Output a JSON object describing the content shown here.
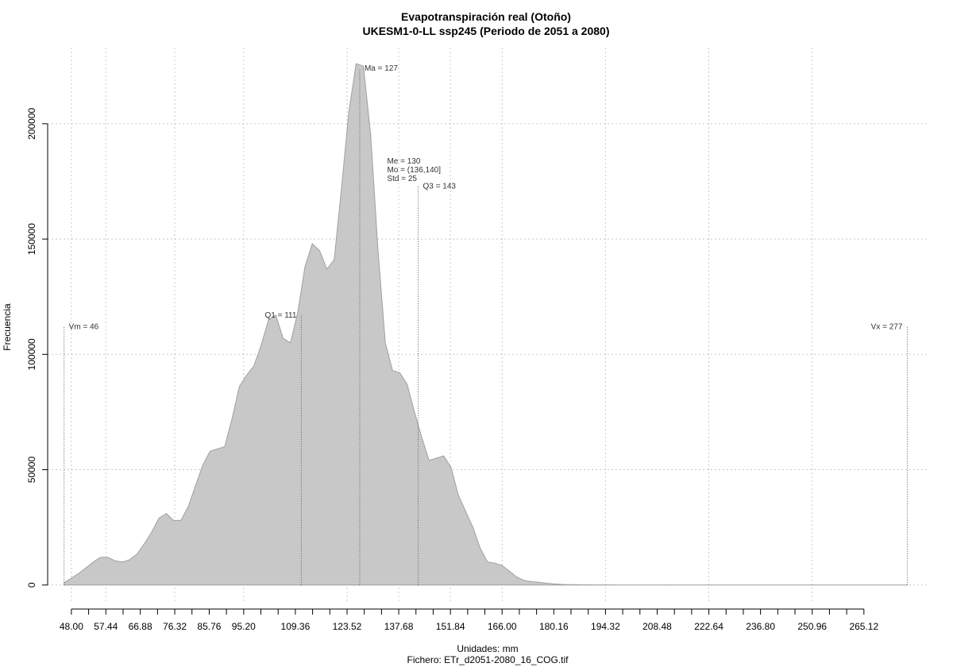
{
  "chart_data": {
    "type": "area",
    "title": "Evapotranspiración real (Otoño)",
    "subtitle": "UKESM1-0-LL ssp245 (Periodo de 2051 a 2080)",
    "xlabel": "Unidades: mm",
    "caption": "Fichero: ETr_d2051-2080_16_COG.tif",
    "ylabel": "Frecuencia",
    "xlim": [
      41.5,
      283
    ],
    "ylim": [
      -8000,
      233000
    ],
    "x_ticks": [
      48,
      57.44,
      66.88,
      76.32,
      85.76,
      95.2,
      109.36,
      123.52,
      137.68,
      151.84,
      166,
      180.16,
      194.32,
      208.48,
      222.64,
      236.8,
      250.96,
      265.12
    ],
    "x_tick_labels": [
      "48.00",
      "57.44",
      "66.88",
      "76.32",
      "85.76",
      "95.20",
      "109.36",
      "123.52",
      "137.68",
      "151.84",
      "166.00",
      "180.16",
      "194.32",
      "208.48",
      "222.64",
      "236.80",
      "250.96",
      "265.12"
    ],
    "x_minor_step": 4.72,
    "y_ticks": [
      0,
      50000,
      100000,
      150000,
      200000
    ],
    "y_tick_labels": [
      "0",
      "50000",
      "100000",
      "150000",
      "200000"
    ],
    "grid": true,
    "grid_x": [
      48,
      57.44,
      76.32,
      95.2,
      123.52,
      137.68,
      151.84,
      166,
      194.32,
      222.64,
      250.96
    ],
    "fill_color": "#c8c8c8",
    "series": [
      {
        "x": [
          46,
          48,
          50,
          52,
          54,
          56,
          58,
          60,
          62,
          64,
          66,
          68,
          70,
          72,
          74,
          76,
          78,
          80,
          82,
          84,
          86,
          88,
          90,
          92,
          94,
          96,
          98,
          100,
          102,
          104,
          106,
          108,
          110,
          112,
          114,
          116,
          118,
          120,
          122,
          124,
          126,
          128,
          130,
          132,
          134,
          136,
          138,
          140,
          142,
          144,
          146,
          148,
          150,
          152,
          154,
          156,
          158,
          160,
          162,
          164,
          166,
          168,
          170,
          172,
          174,
          176,
          178,
          180,
          182,
          184,
          186,
          188,
          190,
          192,
          194,
          196,
          198,
          200,
          202,
          205,
          210,
          220,
          230,
          240,
          250,
          260,
          270,
          277
        ],
        "y": [
          1000,
          3000,
          5000,
          7500,
          10000,
          12000,
          12000,
          10500,
          10000,
          11000,
          13500,
          18000,
          23000,
          29000,
          31000,
          28000,
          28000,
          34000,
          43000,
          52000,
          58000,
          59000,
          60000,
          72000,
          86000,
          91000,
          95000,
          104000,
          115000,
          117000,
          107000,
          105000,
          118000,
          138000,
          148000,
          145000,
          137000,
          141000,
          172000,
          205000,
          226000,
          225000,
          195000,
          145000,
          105000,
          93000,
          92000,
          87000,
          75000,
          64000,
          54000,
          55000,
          56000,
          51000,
          39000,
          32000,
          25000,
          16000,
          10000,
          9500,
          8500,
          6000,
          3500,
          2000,
          1500,
          1200,
          800,
          500,
          300,
          200,
          150,
          100,
          80,
          60,
          50,
          40,
          30,
          20,
          10,
          5,
          0,
          0,
          0,
          0,
          0,
          0,
          0,
          0
        ]
      }
    ],
    "annotations": [
      {
        "label": "Vm = 46",
        "x": 46,
        "y_top": 112000,
        "text_side": "right"
      },
      {
        "label": "Q1 = 111",
        "x": 111,
        "y_top": 117000,
        "text_side": "left"
      },
      {
        "label": "Ma = 127",
        "x": 127,
        "y_top": 224000,
        "text_side": "right"
      },
      {
        "label": "Q3 = 143",
        "x": 143,
        "y_top": 173000,
        "text_side": "right"
      },
      {
        "label": "Vx = 277",
        "x": 277,
        "y_top": 112000,
        "text_side": "left"
      }
    ],
    "stats_block": [
      "Me = 130",
      "Mo = (136,140]",
      "Std = 25"
    ]
  }
}
